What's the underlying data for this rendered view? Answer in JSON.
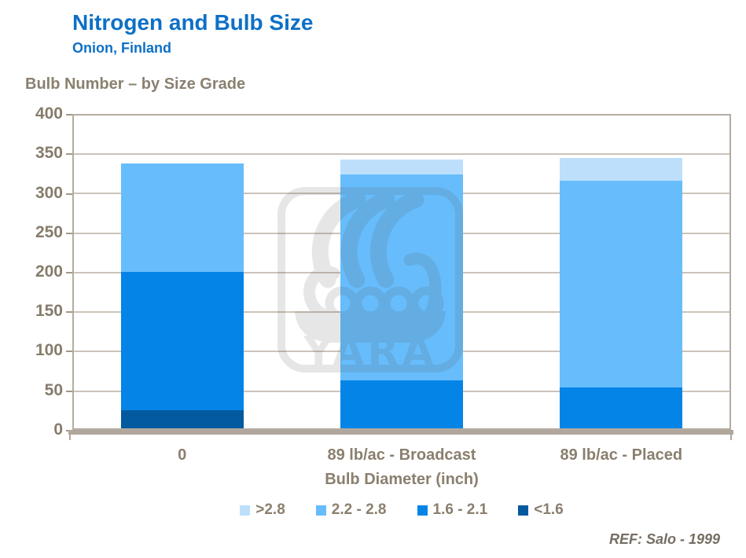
{
  "header": {
    "title": "Nitrogen and Bulb Size",
    "subtitle": "Onion, Finland"
  },
  "section_heading": "Bulb Number – by Size Grade",
  "chart_data": {
    "type": "bar",
    "stacked": true,
    "title": "Bulb Number – by Size Grade",
    "categories": [
      "0",
      "89 lb/ac - Broadcast",
      "89 lb/ac - Placed"
    ],
    "series": [
      {
        "name": "<1.6",
        "color": "#035a9e",
        "values": [
          25,
          0,
          0
        ]
      },
      {
        "name": "1.6 - 2.1",
        "color": "#0584e8",
        "values": [
          175,
          63,
          54
        ]
      },
      {
        "name": "2.2 - 2.8",
        "color": "#67bdfb",
        "values": [
          137,
          260,
          261
        ]
      },
      {
        "name": ">2.8",
        "color": "#bddffc",
        "values": [
          0,
          19,
          29
        ]
      }
    ],
    "legend_order": [
      ">2.8",
      "2.2 - 2.8",
      "1.6 - 2.1",
      "<1.6"
    ],
    "legend_position": "bottom",
    "xlabel": "Bulb Diameter (inch)",
    "ylabel": "",
    "ylim": [
      0,
      400
    ],
    "yticks": [
      0,
      50,
      100,
      150,
      200,
      250,
      300,
      350,
      400
    ],
    "grid": true
  },
  "watermark": {
    "brand": "YARA"
  },
  "footer": {
    "ref": "REF: Salo -  1999"
  }
}
